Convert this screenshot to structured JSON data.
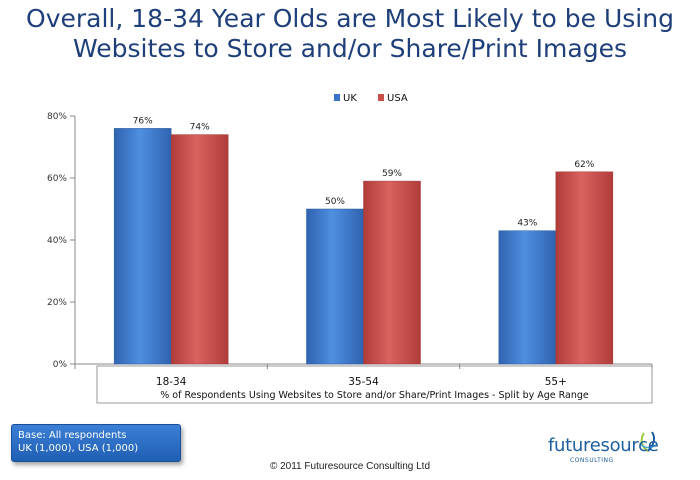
{
  "title_line1": "Overall, 18-34 Year Olds are Most Likely to be Using",
  "title_line2": "Websites to Store and/or Share/Print Images",
  "base_note_line1": "Base: All respondents",
  "base_note_line2": "UK (1,000), USA (1,000)",
  "copyright": "© 2011 Futuresource Consulting Ltd",
  "logo": {
    "name": "futuresource",
    "sub": "CONSULTING"
  },
  "colors": {
    "uk": "#3a73c8",
    "usa": "#c94f4c",
    "title": "#1f3f7a"
  },
  "chart_data": {
    "type": "bar",
    "title": "Overall, 18-34 Year Olds are Most Likely to be Using Websites to Store and/or Share/Print Images",
    "xlabel": "% of Respondents Using Websites to Store and/or Share/Print Images - Split by Age Range",
    "ylabel": "",
    "categories": [
      "18-34",
      "35-54",
      "55+"
    ],
    "series": [
      {
        "name": "UK",
        "values": [
          76,
          50,
          43
        ],
        "labels": [
          "76%",
          "50%",
          "43%"
        ]
      },
      {
        "name": "USA",
        "values": [
          74,
          59,
          62
        ],
        "labels": [
          "74%",
          "59%",
          "62%"
        ]
      }
    ],
    "ylim": [
      0,
      80
    ],
    "yticks": [
      0,
      20,
      40,
      60,
      80
    ],
    "ytick_labels": [
      "0%",
      "20%",
      "40%",
      "60%",
      "80%"
    ],
    "legend": "top-center",
    "grid": false
  }
}
